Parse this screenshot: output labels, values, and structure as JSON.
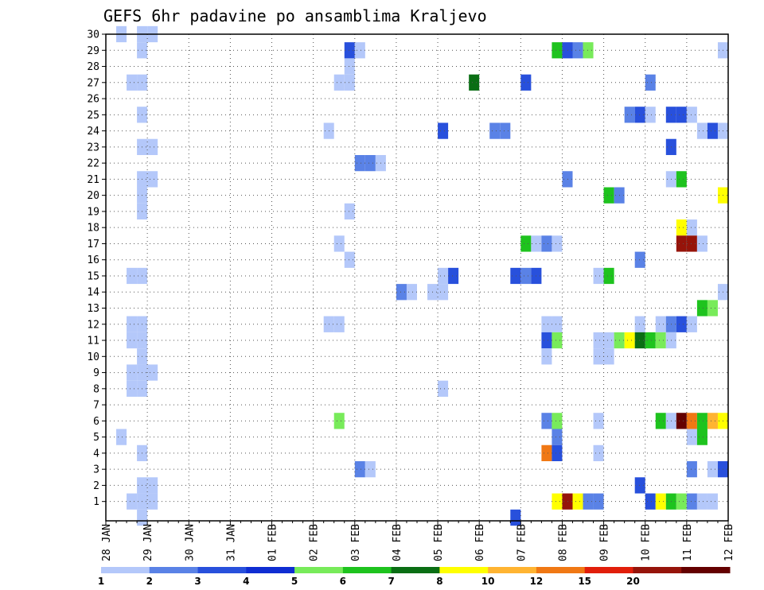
{
  "chart_data": {
    "type": "heatmap",
    "title": "GEFS 6hr padavine po ansamblima Kraljevo",
    "xlabel": "",
    "ylabel": "",
    "x_tick_labels": [
      "28 JAN",
      "29 JAN",
      "30 JAN",
      "31 JAN",
      "01 FEB",
      "02 FEB",
      "03 FEB",
      "04 FEB",
      "05 FEB",
      "06 FEB",
      "07 FEB",
      "08 FEB",
      "09 FEB",
      "10 FEB",
      "11 FEB",
      "12 FEB"
    ],
    "x_range_days": [
      0,
      15
    ],
    "time_step_hours": 6,
    "y_tick_labels": [
      "1",
      "2",
      "3",
      "4",
      "5",
      "6",
      "7",
      "8",
      "9",
      "10",
      "11",
      "12",
      "13",
      "14",
      "15",
      "16",
      "17",
      "18",
      "19",
      "20",
      "21",
      "22",
      "23",
      "24",
      "25",
      "26",
      "27",
      "28",
      "29",
      "30"
    ],
    "y_range": [
      0,
      30
    ],
    "grid": true,
    "legend": {
      "placement": "bottom",
      "boundaries": [
        "1",
        "2",
        "3",
        "4",
        "5",
        "6",
        "7",
        "8",
        "10",
        "12",
        "15",
        "20"
      ],
      "colors": [
        "#b4c8fa",
        "#5a82e6",
        "#2850dc",
        "#0f2dd2",
        "#78eb5a",
        "#1ec31e",
        "#0a6e14",
        "#ffff00",
        "#ffb432",
        "#f07814",
        "#e11e0a",
        "#96140a",
        "#640000"
      ]
    },
    "cells_note": "each cell: [day offset from 28 JAN 00Z, member, color class 0-12]",
    "cells": [
      [
        0.25,
        30,
        0
      ],
      [
        0.75,
        30,
        0
      ],
      [
        1.0,
        30,
        0
      ],
      [
        0.75,
        29,
        0
      ],
      [
        5.75,
        29,
        2
      ],
      [
        6.0,
        29,
        0
      ],
      [
        10.75,
        29,
        5
      ],
      [
        11.0,
        29,
        2
      ],
      [
        11.25,
        29,
        1
      ],
      [
        11.5,
        29,
        4
      ],
      [
        14.75,
        29,
        0
      ],
      [
        5.75,
        28,
        0
      ],
      [
        0.5,
        27,
        0
      ],
      [
        0.75,
        27,
        0
      ],
      [
        5.5,
        27,
        0
      ],
      [
        5.75,
        27,
        0
      ],
      [
        8.75,
        27,
        6
      ],
      [
        10.0,
        27,
        2
      ],
      [
        13.0,
        27,
        1
      ],
      [
        0.75,
        25,
        0
      ],
      [
        12.5,
        25,
        1
      ],
      [
        12.75,
        25,
        2
      ],
      [
        13.0,
        25,
        0
      ],
      [
        13.5,
        25,
        2
      ],
      [
        13.75,
        25,
        2
      ],
      [
        14.0,
        25,
        0
      ],
      [
        5.25,
        24,
        0
      ],
      [
        8.0,
        24,
        2
      ],
      [
        9.25,
        24,
        1
      ],
      [
        9.5,
        24,
        1
      ],
      [
        14.25,
        24,
        0
      ],
      [
        14.5,
        24,
        2
      ],
      [
        14.75,
        24,
        0
      ],
      [
        0.75,
        23,
        0
      ],
      [
        1.0,
        23,
        0
      ],
      [
        13.5,
        23,
        2
      ],
      [
        6.0,
        22,
        1
      ],
      [
        6.25,
        22,
        1
      ],
      [
        6.5,
        22,
        0
      ],
      [
        0.75,
        21,
        0
      ],
      [
        1.0,
        21,
        0
      ],
      [
        11.0,
        21,
        1
      ],
      [
        13.5,
        21,
        0
      ],
      [
        13.75,
        21,
        5
      ],
      [
        0.75,
        20,
        0
      ],
      [
        12.0,
        20,
        5
      ],
      [
        12.25,
        20,
        1
      ],
      [
        14.75,
        20,
        7
      ],
      [
        0.75,
        19,
        0
      ],
      [
        5.75,
        19,
        0
      ],
      [
        13.75,
        18,
        7
      ],
      [
        14.0,
        18,
        0
      ],
      [
        5.5,
        17,
        0
      ],
      [
        10.0,
        17,
        5
      ],
      [
        10.25,
        17,
        0
      ],
      [
        10.5,
        17,
        1
      ],
      [
        10.75,
        17,
        0
      ],
      [
        13.75,
        17,
        11
      ],
      [
        14.0,
        17,
        11
      ],
      [
        14.25,
        17,
        0
      ],
      [
        5.75,
        16,
        0
      ],
      [
        12.75,
        16,
        1
      ],
      [
        0.5,
        15,
        0
      ],
      [
        0.75,
        15,
        0
      ],
      [
        8.0,
        15,
        0
      ],
      [
        8.25,
        15,
        2
      ],
      [
        9.75,
        15,
        2
      ],
      [
        10.0,
        15,
        1
      ],
      [
        10.25,
        15,
        2
      ],
      [
        11.75,
        15,
        0
      ],
      [
        12.0,
        15,
        5
      ],
      [
        7.0,
        14,
        1
      ],
      [
        7.25,
        14,
        0
      ],
      [
        7.75,
        14,
        0
      ],
      [
        8.0,
        14,
        0
      ],
      [
        14.75,
        14,
        0
      ],
      [
        14.25,
        13,
        5
      ],
      [
        14.5,
        13,
        4
      ],
      [
        0.5,
        12,
        0
      ],
      [
        0.75,
        12,
        0
      ],
      [
        5.25,
        12,
        0
      ],
      [
        5.5,
        12,
        0
      ],
      [
        10.5,
        12,
        0
      ],
      [
        10.75,
        12,
        0
      ],
      [
        12.75,
        12,
        0
      ],
      [
        13.25,
        12,
        0
      ],
      [
        13.5,
        12,
        1
      ],
      [
        13.75,
        12,
        2
      ],
      [
        14.0,
        12,
        0
      ],
      [
        0.5,
        11,
        0
      ],
      [
        0.75,
        11,
        0
      ],
      [
        10.5,
        11,
        2
      ],
      [
        10.75,
        11,
        4
      ],
      [
        11.75,
        11,
        0
      ],
      [
        12.0,
        11,
        0
      ],
      [
        12.25,
        11,
        4
      ],
      [
        12.5,
        11,
        7
      ],
      [
        12.75,
        11,
        6
      ],
      [
        13.0,
        11,
        5
      ],
      [
        13.25,
        11,
        4
      ],
      [
        13.5,
        11,
        0
      ],
      [
        0.75,
        10,
        0
      ],
      [
        10.5,
        10,
        0
      ],
      [
        11.75,
        10,
        0
      ],
      [
        12.0,
        10,
        0
      ],
      [
        0.5,
        9,
        0
      ],
      [
        0.75,
        9,
        0
      ],
      [
        1.0,
        9,
        0
      ],
      [
        0.5,
        8,
        0
      ],
      [
        0.75,
        8,
        0
      ],
      [
        8.0,
        8,
        0
      ],
      [
        5.5,
        6,
        4
      ],
      [
        10.5,
        6,
        1
      ],
      [
        10.75,
        6,
        4
      ],
      [
        11.75,
        6,
        0
      ],
      [
        13.25,
        6,
        5
      ],
      [
        13.5,
        6,
        0
      ],
      [
        13.75,
        6,
        12
      ],
      [
        14.0,
        6,
        9
      ],
      [
        14.25,
        6,
        5
      ],
      [
        14.5,
        6,
        8
      ],
      [
        14.75,
        6,
        7
      ],
      [
        0.25,
        5,
        0
      ],
      [
        10.75,
        5,
        1
      ],
      [
        14.0,
        5,
        0
      ],
      [
        14.25,
        5,
        5
      ],
      [
        0.75,
        4,
        0
      ],
      [
        10.5,
        4,
        9
      ],
      [
        10.75,
        4,
        2
      ],
      [
        11.75,
        4,
        0
      ],
      [
        6.0,
        3,
        1
      ],
      [
        6.25,
        3,
        0
      ],
      [
        14.0,
        3,
        1
      ],
      [
        14.5,
        3,
        0
      ],
      [
        14.75,
        3,
        2
      ],
      [
        0.75,
        2,
        0
      ],
      [
        1.0,
        2,
        0
      ],
      [
        12.75,
        2,
        2
      ],
      [
        0.5,
        1,
        0
      ],
      [
        0.75,
        1,
        0
      ],
      [
        1.0,
        1,
        0
      ],
      [
        10.75,
        1,
        7
      ],
      [
        11.0,
        1,
        11
      ],
      [
        11.25,
        1,
        7
      ],
      [
        11.5,
        1,
        1
      ],
      [
        11.75,
        1,
        1
      ],
      [
        13.0,
        1,
        2
      ],
      [
        13.25,
        1,
        7
      ],
      [
        13.5,
        1,
        5
      ],
      [
        13.75,
        1,
        4
      ],
      [
        14.0,
        1,
        1
      ],
      [
        14.25,
        1,
        0
      ],
      [
        14.5,
        1,
        0
      ],
      [
        0.75,
        0,
        0
      ],
      [
        9.75,
        0,
        2
      ]
    ]
  }
}
